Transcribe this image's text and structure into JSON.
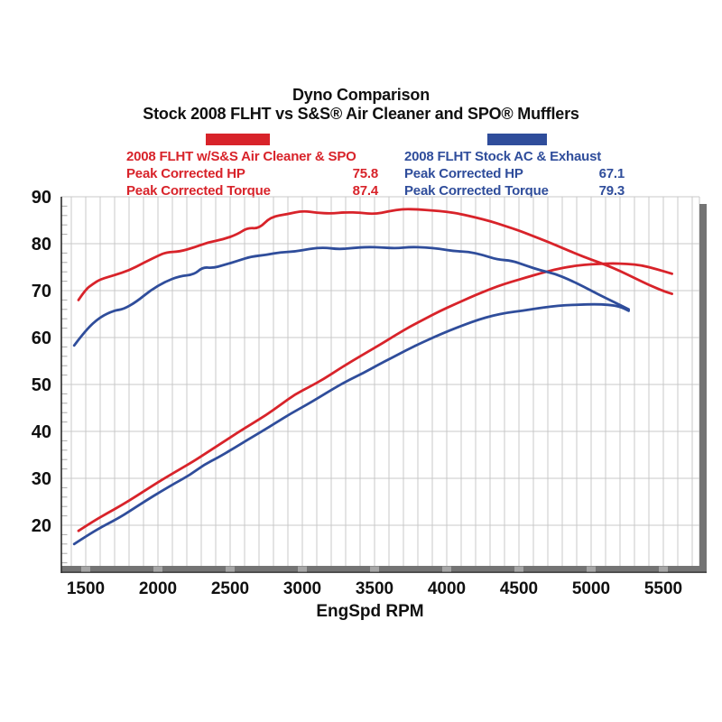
{
  "title": {
    "line1": "Dyno Comparison",
    "line2": "Stock 2008 FLHT vs S&S® Air Cleaner and SPO® Mufflers"
  },
  "legend": {
    "sns": {
      "swatch_color": "#d8232a",
      "name": "2008 FLHT w/S&S Air Cleaner & SPO",
      "peak_hp_label": "Peak Corrected HP",
      "peak_hp_value": "75.8",
      "peak_torque_label": "Peak Corrected Torque",
      "peak_torque_value": "87.4"
    },
    "stock": {
      "swatch_color": "#2f4d9b",
      "name": "2008 FLHT Stock AC & Exhaust",
      "peak_hp_label": "Peak Corrected HP",
      "peak_hp_value": "67.1",
      "peak_torque_label": "Peak Corrected Torque",
      "peak_torque_value": "79.3"
    }
  },
  "chart_data": {
    "type": "line",
    "title": "Dyno Comparison — Stock 2008 FLHT vs S&S Air Cleaner and SPO Mufflers",
    "xlabel": "EngSpd RPM",
    "ylabel": "",
    "xlim": [
      1330,
      5750
    ],
    "ylim": [
      11.3,
      90
    ],
    "x_ticks": [
      1500,
      2000,
      2500,
      3000,
      3500,
      4000,
      4500,
      5000,
      5500
    ],
    "y_ticks": [
      20,
      30,
      40,
      50,
      60,
      70,
      80,
      90
    ],
    "x_minor_step": 100,
    "y_minor_step": 2,
    "grid": true,
    "legend_position": "top",
    "colors": {
      "sns": "#d8232a",
      "stock": "#2f4d9b",
      "grid": "#c9c9c9",
      "axis": "#2b2b2b",
      "shadow": "#747474"
    },
    "series": [
      {
        "name": "2008 FLHT w/S&S Air Cleaner & SPO — Corrected Torque",
        "color": "#d8232a",
        "peak": 87.4,
        "points": [
          [
            1450,
            68.0
          ],
          [
            1500,
            70.3
          ],
          [
            1550,
            71.4
          ],
          [
            1600,
            72.4
          ],
          [
            1700,
            73.3
          ],
          [
            1800,
            74.3
          ],
          [
            1900,
            75.9
          ],
          [
            2000,
            77.4
          ],
          [
            2060,
            78.2
          ],
          [
            2150,
            78.3
          ],
          [
            2250,
            79.2
          ],
          [
            2350,
            80.3
          ],
          [
            2450,
            80.9
          ],
          [
            2550,
            82.0
          ],
          [
            2620,
            83.4
          ],
          [
            2700,
            83.2
          ],
          [
            2780,
            85.7
          ],
          [
            2900,
            86.3
          ],
          [
            3000,
            87.0
          ],
          [
            3100,
            86.6
          ],
          [
            3200,
            86.4
          ],
          [
            3300,
            86.7
          ],
          [
            3400,
            86.6
          ],
          [
            3500,
            86.3
          ],
          [
            3600,
            86.9
          ],
          [
            3700,
            87.4
          ],
          [
            3800,
            87.3
          ],
          [
            3900,
            87.1
          ],
          [
            4000,
            86.8
          ],
          [
            4100,
            86.3
          ],
          [
            4200,
            85.6
          ],
          [
            4300,
            84.8
          ],
          [
            4400,
            83.8
          ],
          [
            4500,
            82.8
          ],
          [
            4600,
            81.6
          ],
          [
            4700,
            80.4
          ],
          [
            4800,
            79.1
          ],
          [
            4900,
            77.8
          ],
          [
            5000,
            76.6
          ],
          [
            5100,
            75.5
          ],
          [
            5200,
            74.2
          ],
          [
            5300,
            72.7
          ],
          [
            5400,
            71.2
          ],
          [
            5500,
            69.9
          ],
          [
            5560,
            69.3
          ]
        ]
      },
      {
        "name": "2008 FLHT w/S&S Air Cleaner & SPO — Corrected HP",
        "color": "#d8232a",
        "peak": 75.8,
        "points": [
          [
            1450,
            18.8
          ],
          [
            1550,
            20.8
          ],
          [
            1650,
            22.6
          ],
          [
            1750,
            24.3
          ],
          [
            1850,
            26.2
          ],
          [
            1950,
            28.2
          ],
          [
            2050,
            30.1
          ],
          [
            2150,
            31.9
          ],
          [
            2250,
            33.7
          ],
          [
            2350,
            35.7
          ],
          [
            2450,
            37.7
          ],
          [
            2550,
            39.7
          ],
          [
            2650,
            41.6
          ],
          [
            2750,
            43.5
          ],
          [
            2850,
            45.7
          ],
          [
            2950,
            47.9
          ],
          [
            3050,
            49.5
          ],
          [
            3150,
            51.2
          ],
          [
            3250,
            53.2
          ],
          [
            3350,
            55.1
          ],
          [
            3450,
            56.9
          ],
          [
            3550,
            58.7
          ],
          [
            3650,
            60.6
          ],
          [
            3750,
            62.4
          ],
          [
            3850,
            64.0
          ],
          [
            3950,
            65.6
          ],
          [
            4050,
            67.0
          ],
          [
            4150,
            68.4
          ],
          [
            4250,
            69.7
          ],
          [
            4350,
            70.9
          ],
          [
            4450,
            71.9
          ],
          [
            4550,
            72.8
          ],
          [
            4650,
            73.7
          ],
          [
            4750,
            74.5
          ],
          [
            4850,
            75.1
          ],
          [
            4950,
            75.5
          ],
          [
            5050,
            75.7
          ],
          [
            5150,
            75.8
          ],
          [
            5250,
            75.7
          ],
          [
            5350,
            75.4
          ],
          [
            5450,
            74.6
          ],
          [
            5560,
            73.6
          ]
        ]
      },
      {
        "name": "2008 FLHT Stock AC & Exhaust — Corrected Torque",
        "color": "#2f4d9b",
        "peak": 79.3,
        "points": [
          [
            1420,
            58.3
          ],
          [
            1500,
            61.6
          ],
          [
            1600,
            64.4
          ],
          [
            1700,
            65.8
          ],
          [
            1760,
            66.0
          ],
          [
            1850,
            67.6
          ],
          [
            1950,
            70.1
          ],
          [
            2050,
            71.9
          ],
          [
            2150,
            73.1
          ],
          [
            2250,
            73.4
          ],
          [
            2310,
            75.0
          ],
          [
            2380,
            74.8
          ],
          [
            2450,
            75.4
          ],
          [
            2550,
            76.3
          ],
          [
            2650,
            77.3
          ],
          [
            2750,
            77.6
          ],
          [
            2850,
            78.2
          ],
          [
            2950,
            78.3
          ],
          [
            3050,
            78.9
          ],
          [
            3150,
            79.2
          ],
          [
            3250,
            78.8
          ],
          [
            3350,
            79.1
          ],
          [
            3450,
            79.3
          ],
          [
            3550,
            79.2
          ],
          [
            3650,
            79.0
          ],
          [
            3750,
            79.3
          ],
          [
            3850,
            79.2
          ],
          [
            3950,
            78.9
          ],
          [
            4050,
            78.4
          ],
          [
            4150,
            78.3
          ],
          [
            4250,
            77.6
          ],
          [
            4350,
            76.6
          ],
          [
            4450,
            76.4
          ],
          [
            4550,
            75.3
          ],
          [
            4650,
            74.3
          ],
          [
            4750,
            73.6
          ],
          [
            4850,
            72.3
          ],
          [
            4950,
            70.8
          ],
          [
            5050,
            69.2
          ],
          [
            5150,
            67.7
          ],
          [
            5260,
            66.0
          ]
        ]
      },
      {
        "name": "2008 FLHT Stock AC & Exhaust — Corrected HP",
        "color": "#2f4d9b",
        "peak": 67.1,
        "points": [
          [
            1420,
            16.0
          ],
          [
            1520,
            18.0
          ],
          [
            1620,
            19.8
          ],
          [
            1720,
            21.4
          ],
          [
            1820,
            23.3
          ],
          [
            1920,
            25.3
          ],
          [
            2020,
            27.2
          ],
          [
            2120,
            29.0
          ],
          [
            2220,
            30.7
          ],
          [
            2320,
            32.9
          ],
          [
            2420,
            34.5
          ],
          [
            2520,
            36.3
          ],
          [
            2620,
            38.2
          ],
          [
            2720,
            40.0
          ],
          [
            2820,
            41.9
          ],
          [
            2920,
            43.8
          ],
          [
            3020,
            45.5
          ],
          [
            3120,
            47.3
          ],
          [
            3220,
            49.2
          ],
          [
            3320,
            50.9
          ],
          [
            3420,
            52.4
          ],
          [
            3520,
            54.1
          ],
          [
            3620,
            55.7
          ],
          [
            3720,
            57.3
          ],
          [
            3820,
            58.8
          ],
          [
            3920,
            60.2
          ],
          [
            4020,
            61.5
          ],
          [
            4120,
            62.7
          ],
          [
            4220,
            63.8
          ],
          [
            4320,
            64.7
          ],
          [
            4420,
            65.3
          ],
          [
            4520,
            65.7
          ],
          [
            4620,
            66.2
          ],
          [
            4720,
            66.6
          ],
          [
            4820,
            66.9
          ],
          [
            4920,
            67.0
          ],
          [
            5020,
            67.1
          ],
          [
            5120,
            67.0
          ],
          [
            5200,
            66.6
          ],
          [
            5260,
            65.7
          ]
        ]
      }
    ]
  }
}
